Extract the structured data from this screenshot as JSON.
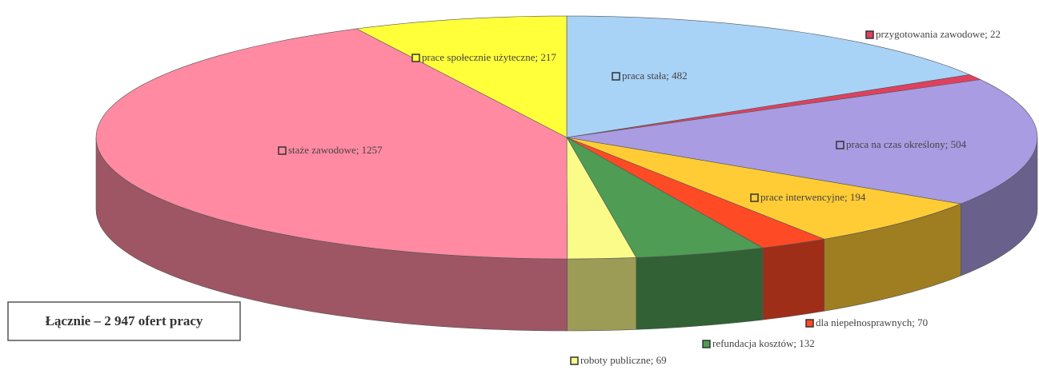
{
  "chart_data": {
    "type": "pie3d",
    "categories": [
      "praca stała; 482",
      "przygotowania zawodowe; 22",
      "praca na czas określony; 504",
      "prace interwencyjne; 194",
      "dla niepełnosprawnych; 70",
      "refundacja kosztów; 132",
      "roboty publiczne; 69",
      "staże zawodowe; 1257",
      "prace społecznie użyteczne; 217"
    ],
    "values": [
      482,
      22,
      504,
      194,
      70,
      132,
      69,
      1257,
      217
    ],
    "colors": [
      "#a9d2f7",
      "#e0405e",
      "#a99ce2",
      "#ffcc35",
      "#ff4a26",
      "#4f9c55",
      "#fbfb8a",
      "#ff8aa2",
      "#ffff3a"
    ],
    "annotation": "Łącznie – 2 947 ofert pracy"
  }
}
